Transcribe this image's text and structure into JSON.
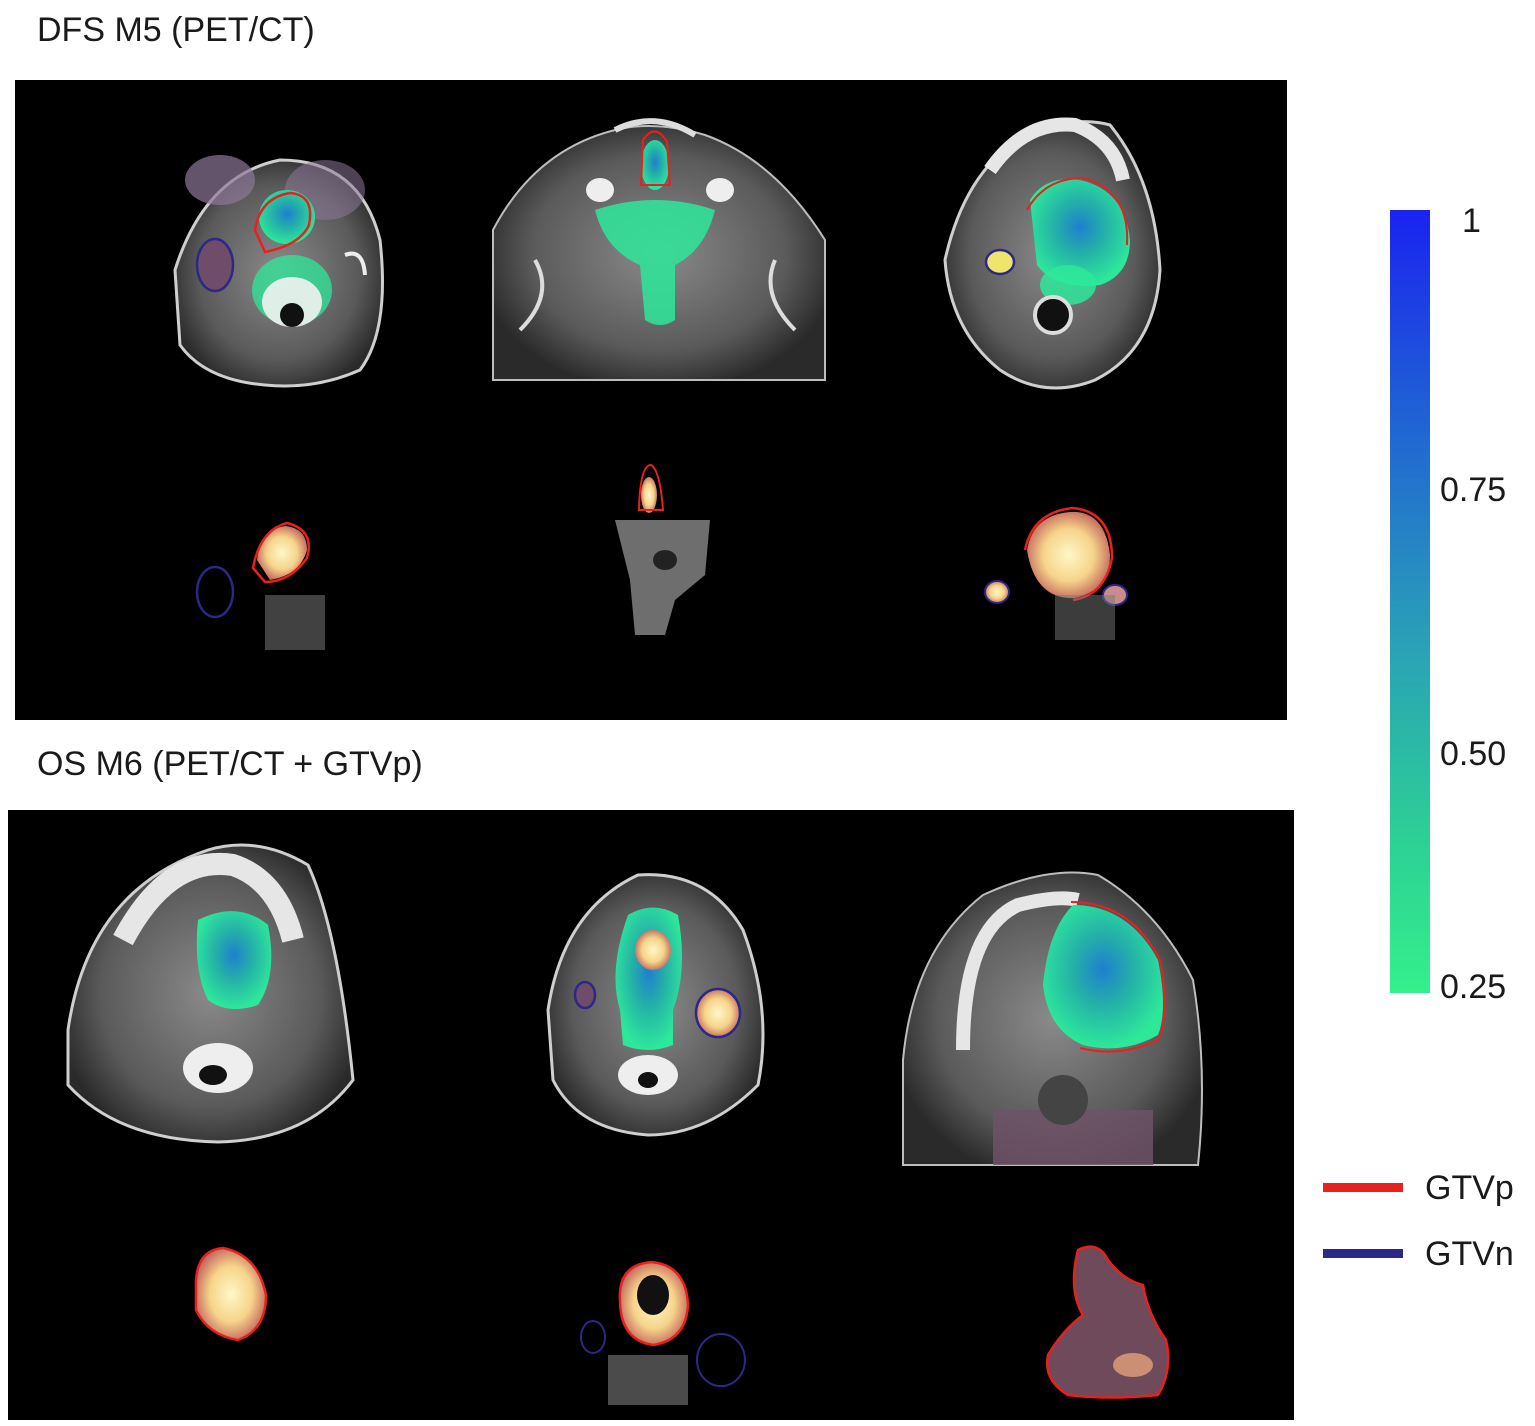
{
  "figure": {
    "top_title": "DFS M5 (PET/CT)",
    "bottom_title": "OS M6 (PET/CT + GTVp)"
  },
  "colorbar": {
    "ticks": [
      "1",
      "0.75",
      "0.50",
      "0.25"
    ],
    "top_color": "#1a23f0",
    "bottom_color": "#34f08c"
  },
  "legend": {
    "items": [
      {
        "label": "GTVp",
        "color": "#e8201e"
      },
      {
        "label": "GTVn",
        "color": "#2c2887"
      }
    ]
  }
}
